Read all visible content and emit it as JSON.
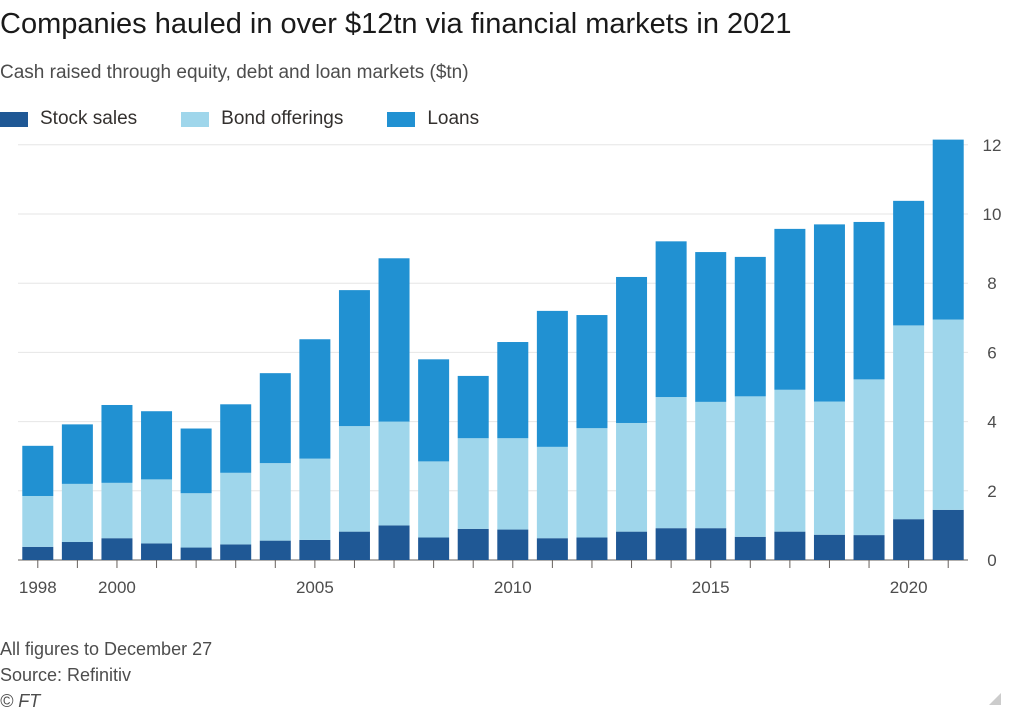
{
  "header": {
    "title": "Companies hauled in over $12tn via financial markets in 2021",
    "subtitle": "Cash raised through equity, debt and loan markets ($tn)"
  },
  "footer": {
    "note": "All figures to December 27",
    "source": "Source: Refinitiv",
    "credit": "© FT"
  },
  "chart_data": {
    "type": "bar",
    "stacked": true,
    "x": [
      1998,
      1999,
      2000,
      2001,
      2002,
      2003,
      2004,
      2005,
      2006,
      2007,
      2008,
      2009,
      2010,
      2011,
      2012,
      2013,
      2014,
      2015,
      2016,
      2017,
      2018,
      2019,
      2020,
      2021
    ],
    "x_tick_labels": [
      "1998",
      "2000",
      "2005",
      "2010",
      "2015",
      "2020"
    ],
    "y_ticks": [
      0,
      2,
      4,
      6,
      8,
      10,
      12
    ],
    "ylim": [
      0,
      12.5
    ],
    "y_axis_position": "right",
    "grid": true,
    "legend_position": "top-left",
    "series": [
      {
        "name": "Stock sales",
        "color": "#1f5895",
        "values": [
          0.38,
          0.52,
          0.63,
          0.48,
          0.36,
          0.45,
          0.56,
          0.58,
          0.82,
          1.0,
          0.65,
          0.9,
          0.88,
          0.63,
          0.65,
          0.82,
          0.92,
          0.92,
          0.67,
          0.82,
          0.73,
          0.72,
          1.18,
          1.45
        ]
      },
      {
        "name": "Bond offerings",
        "color": "#9fd6eb",
        "values": [
          1.47,
          1.68,
          1.6,
          1.85,
          1.57,
          2.07,
          2.24,
          2.35,
          3.05,
          3.0,
          2.2,
          2.62,
          2.64,
          2.64,
          3.16,
          3.14,
          3.79,
          3.65,
          4.06,
          4.1,
          3.85,
          4.5,
          5.6,
          5.5
        ]
      },
      {
        "name": "Loans",
        "color": "#2191d2",
        "values": [
          1.45,
          1.72,
          2.25,
          1.97,
          1.87,
          1.98,
          2.6,
          3.45,
          3.93,
          4.72,
          2.95,
          1.8,
          2.78,
          3.93,
          3.27,
          4.22,
          4.5,
          4.33,
          4.03,
          4.65,
          5.12,
          4.55,
          3.6,
          5.2
        ]
      }
    ]
  }
}
